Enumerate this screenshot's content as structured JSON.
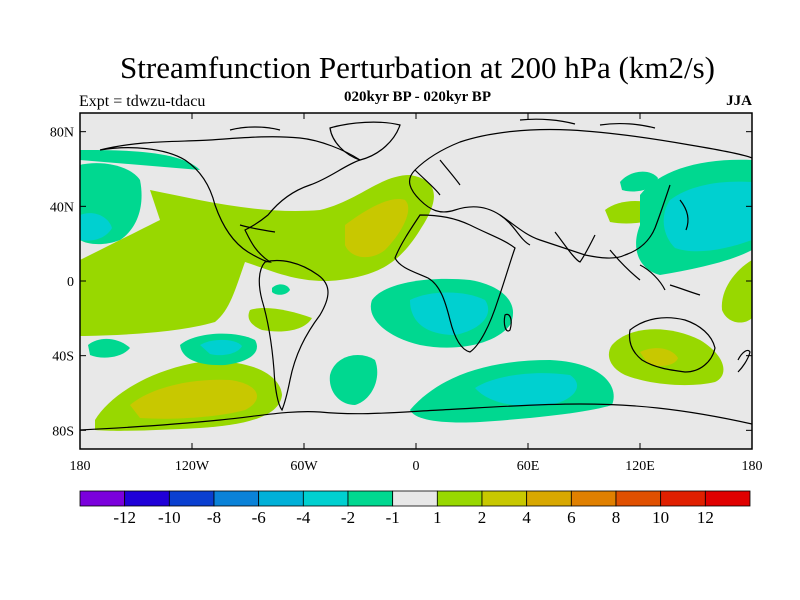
{
  "header": {
    "title": "Streamfunction Perturbation at 200 hPa (km2/s)",
    "subtitle": "020kyr BP - 020kyr BP",
    "left_label": "Expt = tdwzu-tdacu",
    "right_label": "JJA"
  },
  "map": {
    "projection": "cylindrical-equidistant",
    "lon_range": [
      -180,
      180
    ],
    "lat_range": [
      -90,
      90
    ],
    "lon_ticks": [
      "180",
      "120W",
      "60W",
      "0",
      "60E",
      "120E",
      "180"
    ],
    "lat_ticks": [
      "80N",
      "40N",
      "0",
      "40S",
      "80S"
    ],
    "background_color": "#e8e8e8"
  },
  "colorbar": {
    "labels": [
      "-12",
      "-10",
      "-8",
      "-6",
      "-4",
      "-2",
      "-1",
      "1",
      "2",
      "4",
      "6",
      "8",
      "10",
      "12"
    ],
    "colors": [
      "#7b00dc",
      "#2000d8",
      "#0a3fd0",
      "#0a82d8",
      "#00b0d8",
      "#00d0d0",
      "#00d890",
      "#e8e8e8",
      "#98d800",
      "#c8c800",
      "#d8a800",
      "#e08000",
      "#e05000",
      "#e02000",
      "#e00000"
    ]
  }
}
